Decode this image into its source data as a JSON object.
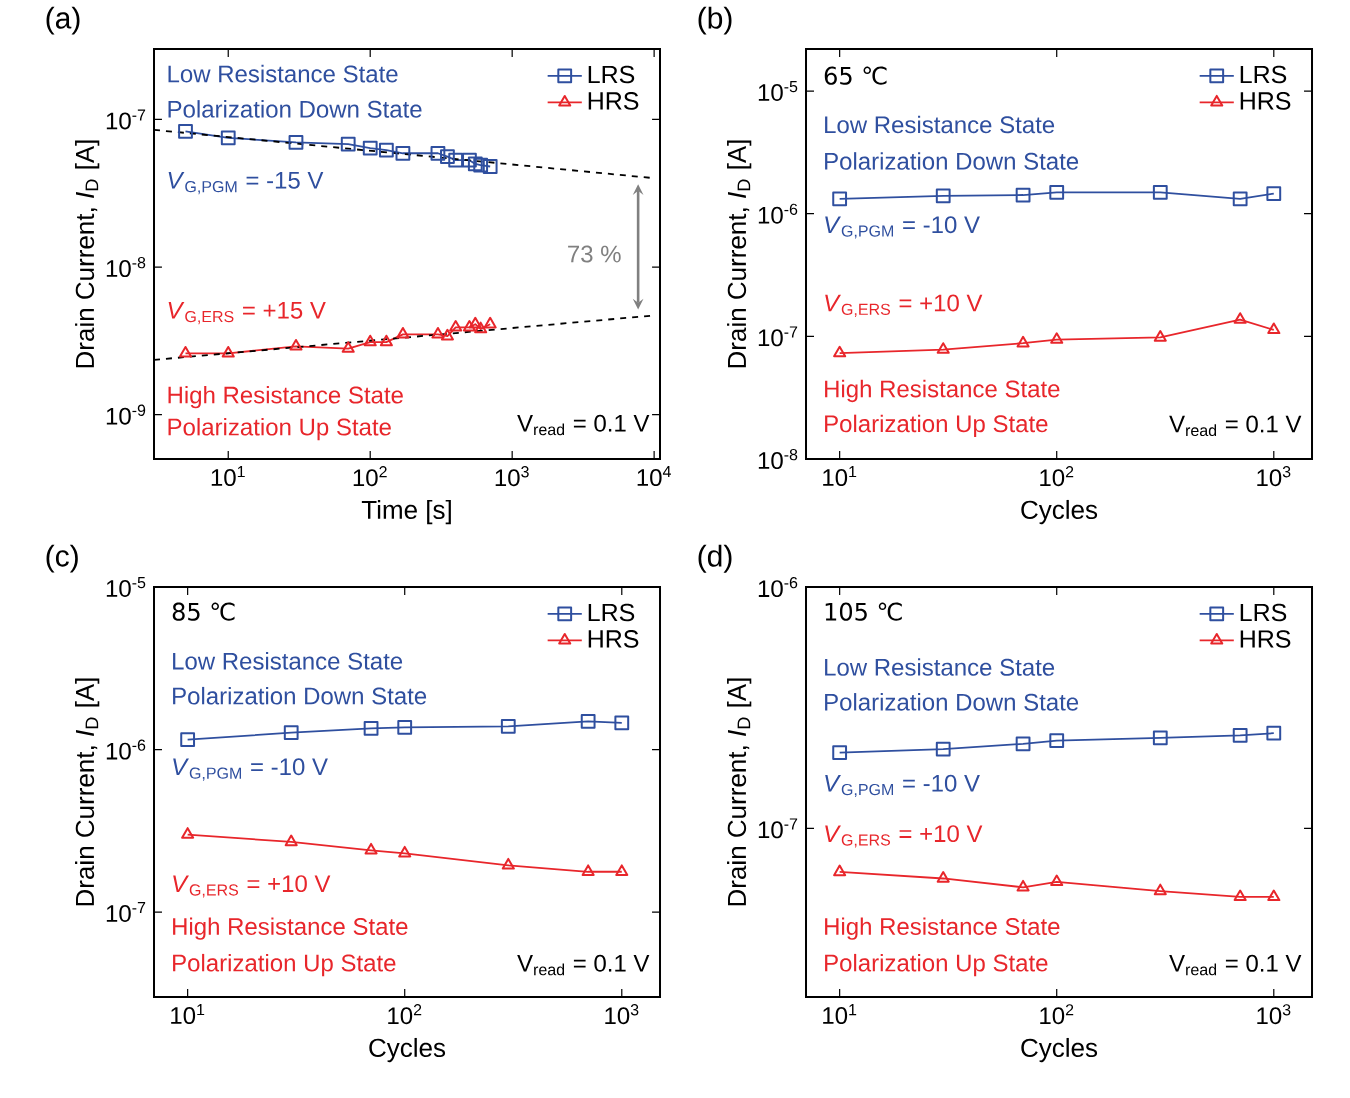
{
  "chart_data": [
    {
      "type": "line",
      "title": "(a)",
      "xlabel": "Time [s]",
      "ylabel": "Drain Current, *I*$_{D}$ [A]",
      "log": "xy",
      "xlim": [
        3,
        11000
      ],
      "ylim": [
        5e-10,
        3e-07
      ],
      "xticks": [
        {
          "value": 10,
          "label": "10$^{1}$"
        },
        {
          "value": 100,
          "label": "10$^{2}$"
        },
        {
          "value": 1000,
          "label": "10$^{3}$"
        },
        {
          "value": 10000,
          "label": "10$^{4}$"
        }
      ],
      "yticks": [
        {
          "value": 1e-09,
          "label": "10$^{-9}$"
        },
        {
          "value": 1e-08,
          "label": "10$^{-8}$"
        },
        {
          "value": 1e-07,
          "label": "10$^{-7}$"
        }
      ],
      "legend": "top right",
      "series": [
        {
          "name": "LRS",
          "color": "#2f4f9f",
          "marker": "square",
          "x": [
            5,
            10,
            30,
            70,
            100,
            130,
            170,
            300,
            350,
            400,
            500,
            550,
            600,
            700
          ],
          "values": [
            8.3e-08,
            7.5e-08,
            7e-08,
            6.8e-08,
            6.4e-08,
            6.2e-08,
            5.9e-08,
            5.9e-08,
            5.6e-08,
            5.3e-08,
            5.3e-08,
            5e-08,
            4.9e-08,
            4.8e-08
          ]
        },
        {
          "name": "HRS",
          "color": "#e8262b",
          "marker": "triangle",
          "x": [
            5,
            10,
            30,
            70,
            100,
            130,
            170,
            300,
            350,
            400,
            500,
            550,
            600,
            700
          ],
          "values": [
            2.6e-09,
            2.6e-09,
            2.9e-09,
            2.8e-09,
            3.1e-09,
            3.1e-09,
            3.5e-09,
            3.5e-09,
            3.4e-09,
            3.9e-09,
            3.9e-09,
            4.1e-09,
            3.8e-09,
            4.1e-09
          ]
        },
        {
          "color": "#000000",
          "marker": "none",
          "line_style": "dashed",
          "x": [
            3,
            10000
          ],
          "values": [
            8.5e-08,
            4e-08
          ]
        },
        {
          "color": "#000000",
          "marker": "none",
          "line_style": "dashed",
          "x": [
            3,
            10000
          ],
          "values": [
            2.35e-09,
            4.7e-09
          ]
        }
      ],
      "annotations": [
        "Low Resistance State",
        "Polarization Down State",
        "*V*$_{G,PGM}$ = -15 V",
        "73 %",
        "*V*$_{G,ERS}$ = +15 V",
        "High Resistance State",
        "Polarization Up State",
        "V$_{read}$ = 0.1 V"
      ]
    },
    {
      "type": "line",
      "title": "(b)",
      "xlabel": "Cycles",
      "ylabel": "Drain Current, *I*$_{D}$ [A]",
      "log": "xy",
      "xlim": [
        7,
        1500
      ],
      "ylim": [
        1e-08,
        2.2e-05
      ],
      "xticks": [
        {
          "value": 10,
          "label": "10$^{1}$"
        },
        {
          "value": 100,
          "label": "10$^{2}$"
        },
        {
          "value": 1000,
          "label": "10$^{3}$"
        }
      ],
      "yticks": [
        {
          "value": 1e-08,
          "label": "10$^{-8}$"
        },
        {
          "value": 1e-07,
          "label": "10$^{-7}$"
        },
        {
          "value": 1e-06,
          "label": "10$^{-6}$"
        },
        {
          "value": 1e-05,
          "label": "10$^{-5}$"
        }
      ],
      "legend": "top right",
      "series": [
        {
          "name": "LRS",
          "color": "#2f4f9f",
          "marker": "square",
          "x": [
            10,
            30,
            70,
            100,
            300,
            700,
            1000
          ],
          "values": [
            1.32e-06,
            1.4e-06,
            1.42e-06,
            1.49e-06,
            1.49e-06,
            1.32e-06,
            1.46e-06
          ]
        },
        {
          "name": "HRS",
          "color": "#e8262b",
          "marker": "triangle",
          "x": [
            10,
            30,
            70,
            100,
            300,
            700,
            1000
          ],
          "values": [
            7.3e-08,
            7.8e-08,
            8.8e-08,
            9.4e-08,
            9.8e-08,
            1.37e-07,
            1.13e-07
          ]
        }
      ],
      "annotations": [
        "65 ℃",
        "Low Resistance State",
        "Polarization Down State",
        "*V*$_{G,PGM}$ = -10 V",
        "*V*$_{G,ERS}$ = +10 V",
        "High Resistance State",
        "Polarization Up State",
        "V$_{read}$ = 0.1 V"
      ]
    },
    {
      "type": "line",
      "title": "(c)",
      "xlabel": "Cycles",
      "ylabel": "Drain Current, *I*$_{D}$ [A]",
      "log": "xy",
      "xlim": [
        7,
        1500
      ],
      "ylim": [
        3e-08,
        1e-05
      ],
      "xticks": [
        {
          "value": 10,
          "label": "10$^{1}$"
        },
        {
          "value": 100,
          "label": "10$^{2}$"
        },
        {
          "value": 1000,
          "label": "10$^{3}$"
        }
      ],
      "yticks": [
        {
          "value": 1e-07,
          "label": "10$^{-7}$"
        },
        {
          "value": 1e-06,
          "label": "10$^{-6}$"
        },
        {
          "value": 1e-05,
          "label": "10$^{-5}$"
        }
      ],
      "legend": "top right",
      "series": [
        {
          "name": "LRS",
          "color": "#2f4f9f",
          "marker": "square",
          "x": [
            10,
            30,
            70,
            100,
            300,
            700,
            1000
          ],
          "values": [
            1.15e-06,
            1.27e-06,
            1.35e-06,
            1.37e-06,
            1.39e-06,
            1.49e-06,
            1.46e-06
          ]
        },
        {
          "name": "HRS",
          "color": "#e8262b",
          "marker": "triangle",
          "x": [
            10,
            30,
            70,
            100,
            300,
            700,
            1000
          ],
          "values": [
            3e-07,
            2.7e-07,
            2.4e-07,
            2.3e-07,
            1.94e-07,
            1.77e-07,
            1.77e-07
          ]
        }
      ],
      "annotations": [
        "85 ℃",
        "Low Resistance State",
        "Polarization Down State",
        "*V*$_{G,PGM}$ = -10 V",
        "*V*$_{G,ERS}$ = +10 V",
        "High Resistance State",
        "Polarization Up State",
        "V$_{read}$ = 0.1 V"
      ]
    },
    {
      "type": "line",
      "title": "(d)",
      "xlabel": "Cycles",
      "ylabel": "Drain Current, *I*$_{D}$ [A]",
      "log": "xy",
      "xlim": [
        7,
        1500
      ],
      "ylim": [
        2e-08,
        1e-06
      ],
      "xticks": [
        {
          "value": 10,
          "label": "10$^{1}$"
        },
        {
          "value": 100,
          "label": "10$^{2}$"
        },
        {
          "value": 1000,
          "label": "10$^{3}$"
        }
      ],
      "yticks": [
        {
          "value": 1e-07,
          "label": "10$^{-7}$"
        },
        {
          "value": 1e-06,
          "label": "10$^{-6}$"
        }
      ],
      "legend": "top right",
      "series": [
        {
          "name": "LRS",
          "color": "#2f4f9f",
          "marker": "square",
          "x": [
            10,
            30,
            70,
            100,
            300,
            700,
            1000
          ],
          "values": [
            2.06e-07,
            2.13e-07,
            2.24e-07,
            2.31e-07,
            2.37e-07,
            2.43e-07,
            2.48e-07
          ]
        },
        {
          "name": "HRS",
          "color": "#e8262b",
          "marker": "triangle",
          "x": [
            10,
            30,
            70,
            100,
            300,
            700,
            1000
          ],
          "values": [
            6.6e-08,
            6.2e-08,
            5.7e-08,
            6e-08,
            5.5e-08,
            5.2e-08,
            5.2e-08
          ]
        }
      ],
      "annotations": [
        "105 ℃",
        "Low Resistance State",
        "Polarization Down State",
        "*V*$_{G,PGM}$ = -10 V",
        "*V*$_{G,ERS}$ = +10 V",
        "High Resistance State",
        "Polarization Up State",
        "V$_{read}$ = 0.1 V"
      ]
    }
  ]
}
